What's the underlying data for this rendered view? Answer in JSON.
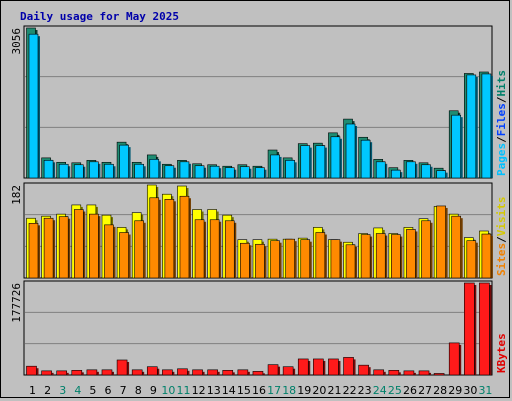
{
  "chart_data": {
    "type": "bar",
    "title": "Daily usage for May 2025",
    "categories": [
      "1",
      "2",
      "3",
      "4",
      "5",
      "6",
      "7",
      "8",
      "9",
      "10",
      "11",
      "12",
      "13",
      "14",
      "15",
      "16",
      "17",
      "18",
      "19",
      "20",
      "21",
      "22",
      "23",
      "24",
      "25",
      "26",
      "27",
      "28",
      "29",
      "30",
      "31"
    ],
    "weekend_days": [
      "3",
      "4",
      "10",
      "11",
      "17",
      "18",
      "24",
      "25",
      "31"
    ],
    "panels": [
      {
        "name": "hits",
        "ymax_label": "3056",
        "ylim": [
          0,
          3056
        ],
        "labels": [
          "Pages",
          "/",
          "Files",
          "/",
          "Hits"
        ],
        "label_colors": [
          "#00c0ff",
          "#000000",
          "#0040ff",
          "#000000",
          "#00806a"
        ],
        "series": [
          {
            "name": "Hits",
            "color": "#1f8c72",
            "values": [
              3056,
              410,
              320,
              310,
              360,
              320,
              730,
              320,
              470,
              280,
              360,
              290,
              270,
              240,
              270,
              240,
              570,
              410,
              700,
              710,
              920,
              1200,
              830,
              380,
              210,
              360,
              310,
              200,
              1370,
              2130,
              2160
            ]
          },
          {
            "name": "Files",
            "color": "#00c8ff",
            "values": [
              2930,
              360,
              280,
              270,
              330,
              280,
              670,
              280,
              380,
              250,
              330,
              250,
              240,
              210,
              230,
              210,
              470,
              360,
              660,
              660,
              840,
              1100,
              770,
              330,
              160,
              330,
              270,
              150,
              1280,
              2100,
              2120
            ]
          }
        ]
      },
      {
        "name": "visits",
        "ymax_label": "182",
        "ylim": [
          0,
          182
        ],
        "labels": [
          "Sites",
          "/",
          "Visits"
        ],
        "label_colors": [
          "#f08000",
          "#000000",
          "#d4c800"
        ],
        "series": [
          {
            "name": "Visits",
            "color": "#ffff00",
            "values": [
              117,
              121,
              125,
              143,
              143,
              123,
              99,
              128,
              182,
              164,
              180,
              134,
              134,
              123,
              75,
              75,
              76,
              76,
              78,
              99,
              75,
              70,
              87,
              98,
              87,
              99,
              116,
              140,
              125,
              79,
              92
            ]
          },
          {
            "name": "Sites",
            "color": "#ff8a00",
            "values": [
              107,
              117,
              120,
              134,
              125,
              104,
              89,
              112,
              157,
              154,
              160,
              114,
              114,
              112,
              68,
              66,
              73,
              76,
              75,
              89,
              75,
              65,
              85,
              87,
              85,
              95,
              112,
              141,
              121,
              73,
              86
            ]
          }
        ]
      },
      {
        "name": "kbytes",
        "ymax_label": "177726",
        "ylim": [
          0,
          177726
        ],
        "labels": [
          "KBytes"
        ],
        "label_colors": [
          "#e00000"
        ],
        "series": [
          {
            "name": "KBytes",
            "color": "#ff1a1a",
            "values": [
              17000,
              8000,
              8000,
              9000,
              10000,
              10000,
              29000,
              10000,
              16000,
              10000,
              12000,
              10000,
              10000,
              9000,
              10000,
              7000,
              20000,
              16000,
              31000,
              31000,
              31000,
              34000,
              19000,
              10000,
              9000,
              8000,
              8000,
              3000,
              62000,
              177726,
              177726
            ]
          }
        ]
      }
    ]
  }
}
